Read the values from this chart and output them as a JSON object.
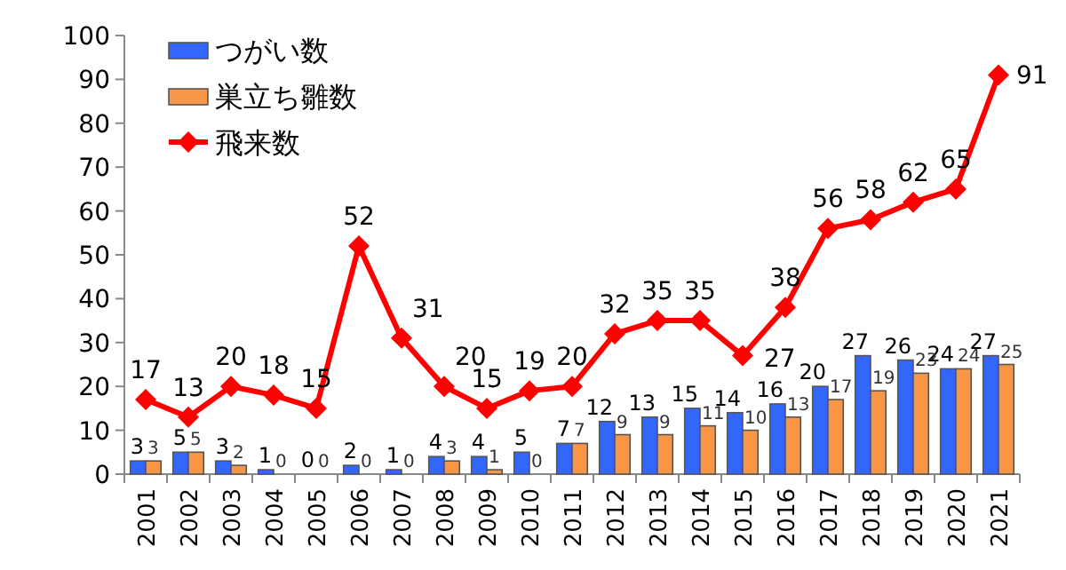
{
  "chart_data": {
    "type": "bar",
    "categories": [
      "2001",
      "2002",
      "2003",
      "2004",
      "2005",
      "2006",
      "2007",
      "2008",
      "2009",
      "2010",
      "2011",
      "2012",
      "2013",
      "2014",
      "2015",
      "2016",
      "2017",
      "2018",
      "2019",
      "2020",
      "2021"
    ],
    "series": [
      {
        "name": "つがい数",
        "color": "#3366ff",
        "values": [
          3,
          5,
          3,
          1,
          0,
          2,
          1,
          4,
          4,
          5,
          7,
          12,
          13,
          15,
          14,
          16,
          20,
          27,
          26,
          24,
          27
        ]
      },
      {
        "name": "巣立ち雛数",
        "color": "#f79646",
        "values": [
          3,
          5,
          2,
          0,
          0,
          0,
          0,
          3,
          1,
          0,
          7,
          9,
          9,
          11,
          10,
          13,
          17,
          19,
          23,
          24,
          25
        ]
      },
      {
        "name": "飛来数",
        "type": "line",
        "color": "#ff0000",
        "values": [
          17,
          13,
          20,
          18,
          15,
          52,
          31,
          20,
          15,
          19,
          20,
          32,
          35,
          35,
          27,
          38,
          56,
          58,
          62,
          65,
          91
        ]
      }
    ],
    "ylim": [
      0,
      100
    ],
    "yticks": [
      0,
      10,
      20,
      30,
      40,
      50,
      60,
      70,
      80,
      90,
      100
    ],
    "data_labels": true,
    "legend": "top left",
    "marker": "diamond"
  }
}
